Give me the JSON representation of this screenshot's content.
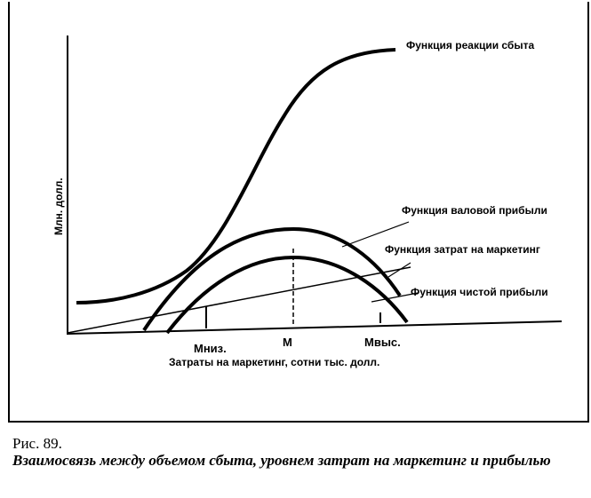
{
  "figure": {
    "y_axis_label": "Млн. долл.",
    "x_axis_label": "Затраты на маркетинг, сотни тыс. долл.",
    "curves": {
      "sales_response": "Функция реакции сбыта",
      "gross_profit": "Функция валовой прибыли",
      "marketing_cost": "Функция затрат на маркетинг",
      "net_profit": "Функция чистой прибыли"
    },
    "ticks": {
      "m_low": "Мниз.",
      "m": "M",
      "m_high": "Mвыс."
    }
  },
  "caption": {
    "number": "Рис. 89.",
    "text": "Взаимосвязь между объемом сбыта, уровнем затрат на маркетинг и прибылью"
  }
}
